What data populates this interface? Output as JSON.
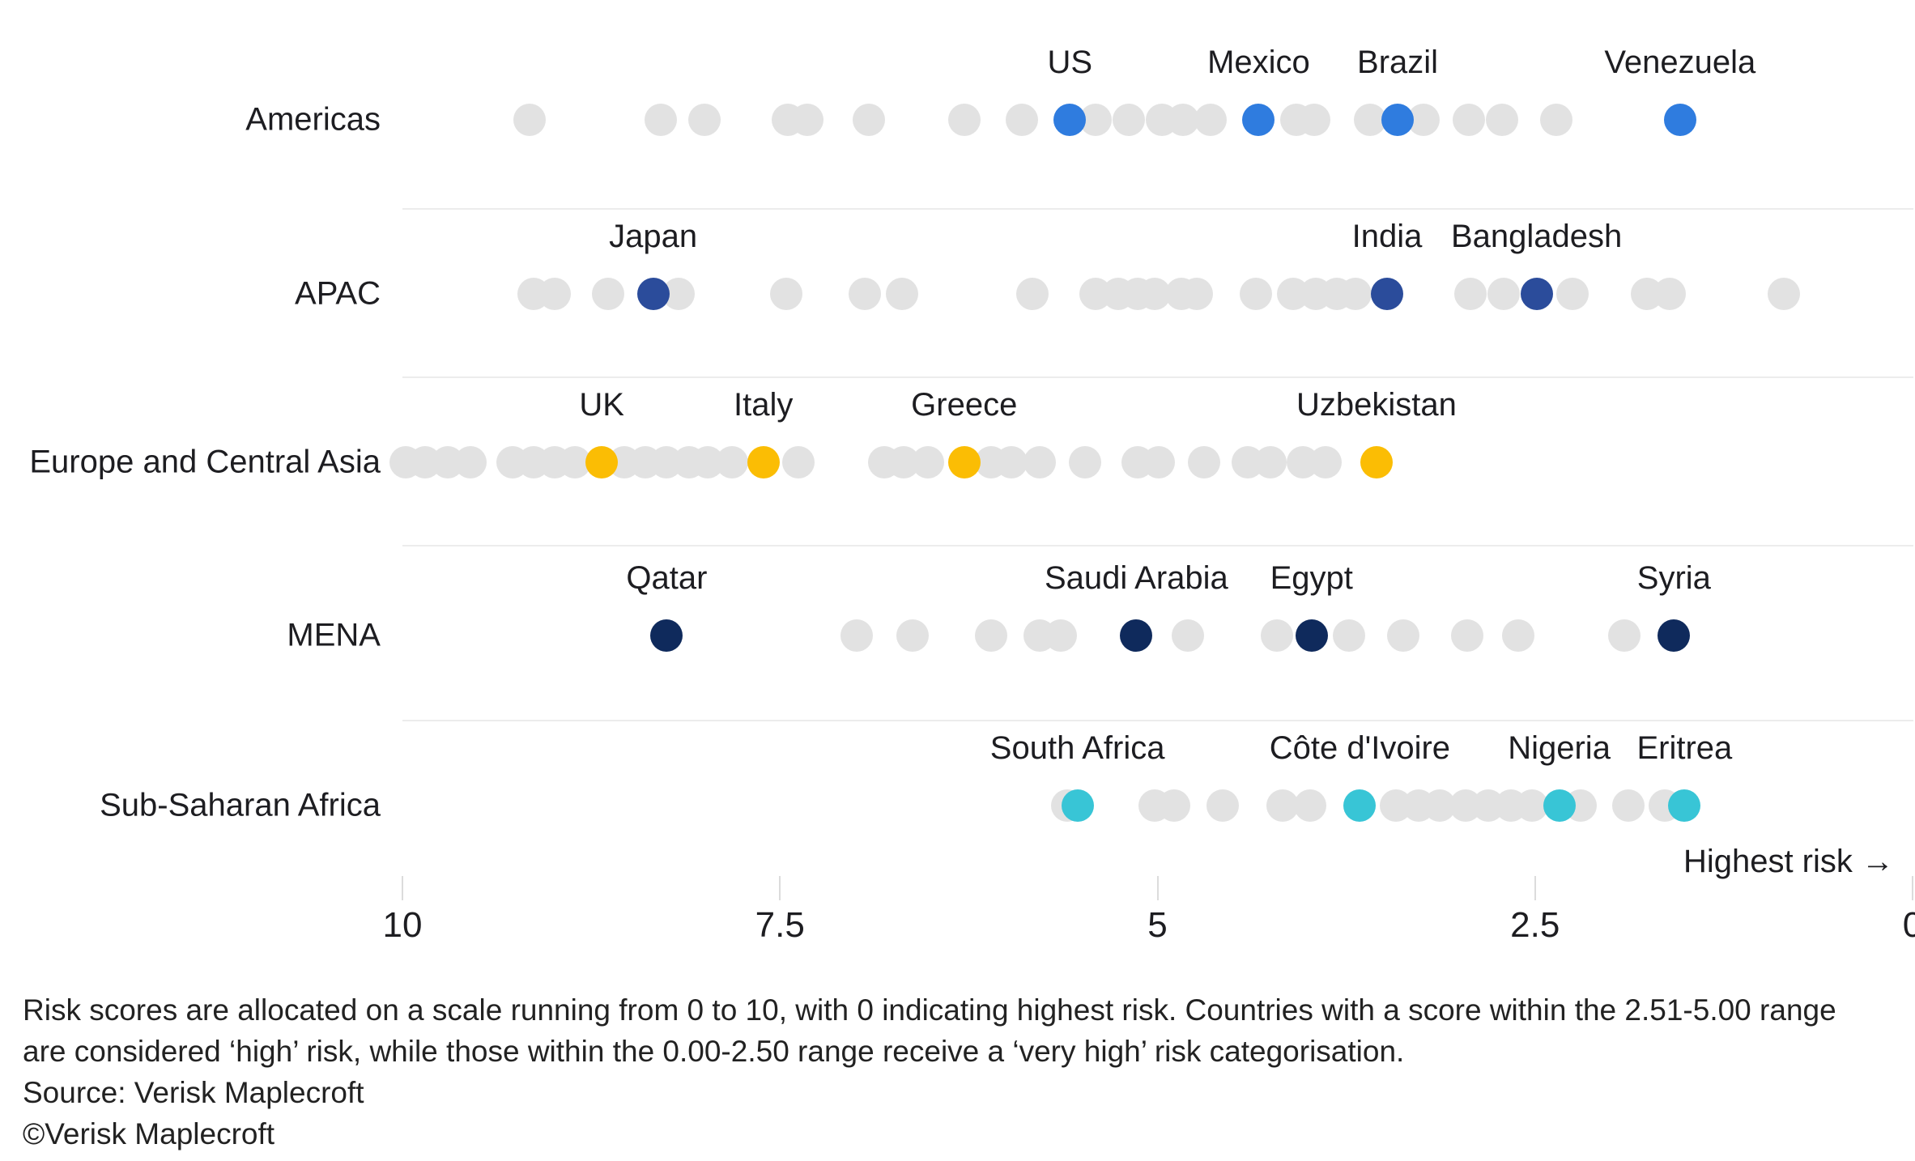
{
  "chart_data": {
    "type": "scatter",
    "subtype": "dot-strip-plot",
    "title": "",
    "axis": {
      "min": 0,
      "max": 10,
      "reversed": true,
      "ticks": [
        10,
        7.5,
        5,
        2.5,
        0
      ],
      "tick_labels": [
        "10",
        "7.5",
        "5",
        "2.5",
        "0"
      ],
      "direction_note": "Highest risk →",
      "grid": false
    },
    "dot_color_gray": "#E2E2E2",
    "rows": [
      {
        "region": "Americas",
        "highlight_color": "#2F7CDF",
        "gray_values": [
          9.16,
          8.29,
          8.0,
          7.45,
          7.32,
          6.91,
          6.28,
          5.9,
          5.41,
          5.19,
          4.97,
          4.83,
          4.65,
          4.08,
          3.96,
          3.59,
          3.24,
          2.94,
          2.72,
          2.36
        ],
        "highlights": [
          {
            "label": "US",
            "value": 5.58
          },
          {
            "label": "Mexico",
            "value": 4.33
          },
          {
            "label": "Brazil",
            "value": 3.41
          },
          {
            "label": "Venezuela",
            "value": 1.54
          }
        ]
      },
      {
        "region": "APAC",
        "highlight_color": "#2B4C9B",
        "gray_values": [
          9.13,
          8.99,
          8.64,
          8.17,
          7.46,
          6.94,
          6.69,
          5.83,
          5.41,
          5.26,
          5.13,
          5.02,
          4.84,
          4.74,
          4.35,
          4.1,
          3.95,
          3.81,
          3.69,
          2.93,
          2.71,
          2.25,
          1.76,
          1.61,
          0.85
        ],
        "highlights": [
          {
            "label": "Japan",
            "value": 8.34
          },
          {
            "label": "India",
            "value": 3.48
          },
          {
            "label": "Bangladesh",
            "value": 2.49
          }
        ]
      },
      {
        "region": "Europe and Central Asia",
        "highlight_color": "#FBBD04",
        "gray_values": [
          9.98,
          9.85,
          9.7,
          9.55,
          9.27,
          9.13,
          8.99,
          8.86,
          8.53,
          8.39,
          8.25,
          8.1,
          7.98,
          7.82,
          7.38,
          6.81,
          6.68,
          6.52,
          6.1,
          5.97,
          5.78,
          5.48,
          5.13,
          4.99,
          4.69,
          4.4,
          4.25,
          4.04,
          3.89
        ],
        "highlights": [
          {
            "label": "UK",
            "value": 8.68
          },
          {
            "label": "Italy",
            "value": 7.61
          },
          {
            "label": "Greece",
            "value": 6.28
          },
          {
            "label": "Uzbekistan",
            "value": 3.55
          }
        ]
      },
      {
        "region": "MENA",
        "highlight_color": "#0F2A5C",
        "gray_values": [
          6.99,
          6.62,
          6.1,
          5.78,
          5.64,
          4.8,
          4.21,
          3.73,
          3.37,
          2.95,
          2.61,
          1.91
        ],
        "highlights": [
          {
            "label": "Qatar",
            "value": 8.25
          },
          {
            "label": "Saudi Arabia",
            "value": 5.14
          },
          {
            "label": "Egypt",
            "value": 3.98
          },
          {
            "label": "Syria",
            "value": 1.58
          }
        ]
      },
      {
        "region": "Sub-Saharan Africa",
        "highlight_color": "#38C5D6",
        "gray_values": [
          5.6,
          5.02,
          4.89,
          4.57,
          4.17,
          3.99,
          3.42,
          3.27,
          3.13,
          2.96,
          2.81,
          2.66,
          2.52,
          2.2,
          1.88,
          1.64
        ],
        "highlights": [
          {
            "label": "South Africa",
            "value": 5.53
          },
          {
            "label": "Côte d'Ivoire",
            "value": 3.66
          },
          {
            "label": "Nigeria",
            "value": 2.34
          },
          {
            "label": "Eritrea",
            "value": 1.51
          }
        ]
      }
    ]
  },
  "footnote": {
    "lines": [
      "Risk scores are allocated on a scale running from 0 to 10, with 0 indicating highest risk. Countries with a score within the 2.51-5.00 range",
      "are considered ‘high’ risk, while those within the 0.00-2.50 range receive a ‘very high’ risk categorisation.",
      "Source: Verisk Maplecroft",
      "©Verisk Maplecroft"
    ]
  }
}
